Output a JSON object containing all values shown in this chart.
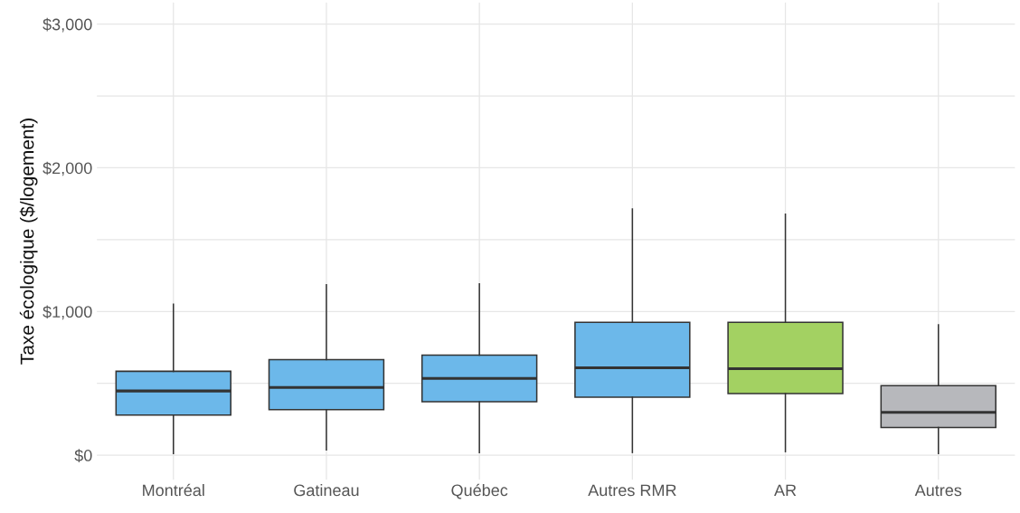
{
  "chart_data": {
    "type": "box",
    "ylabel": "Taxe écologique ($/logement)",
    "categories": [
      "Montréal",
      "Gatineau",
      "Québec",
      "Autres RMR",
      "AR",
      "Autres"
    ],
    "colors": [
      "#6cb8ea",
      "#6cb8ea",
      "#6cb8ea",
      "#6cb8ea",
      "#a3d162",
      "#b7b8bc"
    ],
    "boxes": [
      {
        "low": 12,
        "q1": 280,
        "median": 447,
        "q3": 584,
        "high": 1050
      },
      {
        "low": 37,
        "q1": 317,
        "median": 472,
        "q3": 665,
        "high": 1186
      },
      {
        "low": 19,
        "q1": 373,
        "median": 534,
        "q3": 696,
        "high": 1193
      },
      {
        "low": 19,
        "q1": 404,
        "median": 609,
        "q3": 925,
        "high": 1714
      },
      {
        "low": 25,
        "q1": 429,
        "median": 602,
        "q3": 925,
        "high": 1677
      },
      {
        "low": 12,
        "q1": 193,
        "median": 298,
        "q3": 484,
        "high": 907
      }
    ],
    "ylim": [
      -170,
      3150
    ],
    "yticks": [
      {
        "value": 0,
        "label": "$0"
      },
      {
        "value": 500,
        "label": null
      },
      {
        "value": 1000,
        "label": "$1,000"
      },
      {
        "value": 1500,
        "label": null
      },
      {
        "value": 2000,
        "label": "$2,000"
      },
      {
        "value": 2500,
        "label": null
      },
      {
        "value": 3000,
        "label": "$3,000"
      }
    ],
    "grid": true
  }
}
